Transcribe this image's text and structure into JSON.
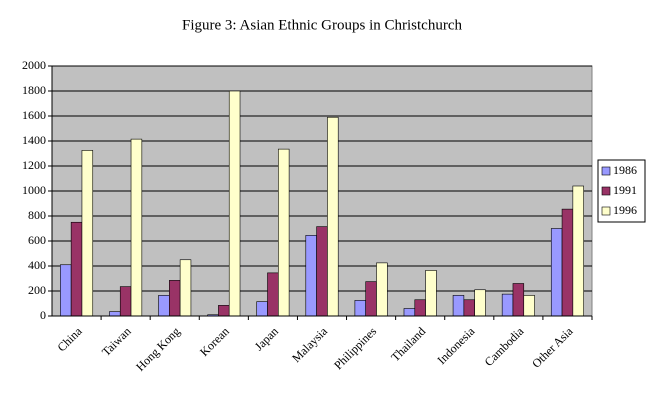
{
  "chart_data": {
    "type": "bar",
    "title": "Figure 3: Asian Ethnic Groups in Christchurch",
    "categories": [
      "China",
      "Taiwan",
      "Hong Kong",
      "Korean",
      "Japan",
      "Malaysia",
      "Philippines",
      "Thailand",
      "Indonesia",
      "Cambodia",
      "Other Asia"
    ],
    "series": [
      {
        "name": "1986",
        "color": "#9999ff",
        "values": [
          410,
          35,
          165,
          10,
          115,
          645,
          125,
          60,
          165,
          175,
          700
        ]
      },
      {
        "name": "1991",
        "color": "#993366",
        "values": [
          750,
          235,
          285,
          85,
          345,
          715,
          275,
          130,
          130,
          260,
          855
        ]
      },
      {
        "name": "1996",
        "color": "#ffffcc",
        "values": [
          1325,
          1415,
          450,
          1800,
          1335,
          1590,
          425,
          365,
          210,
          165,
          1040
        ]
      }
    ],
    "ylim": [
      0,
      2000
    ],
    "yticks": [
      0,
      200,
      400,
      600,
      800,
      1000,
      1200,
      1400,
      1600,
      1800,
      2000
    ],
    "grid": true,
    "legend": "right"
  }
}
